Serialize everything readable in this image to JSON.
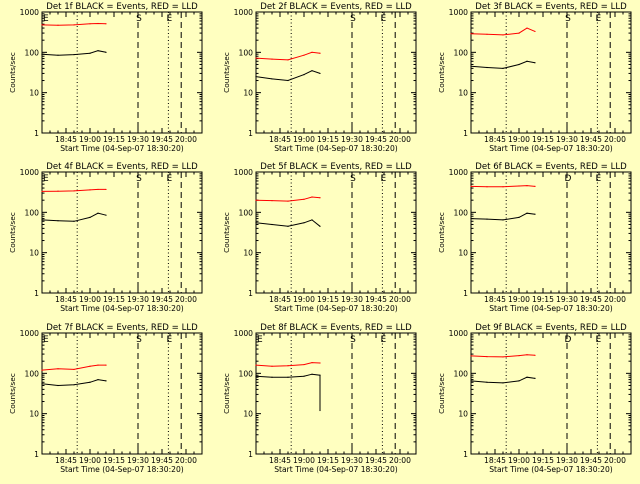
{
  "colors": {
    "background": "#ffffc0",
    "events": "#000000",
    "lld": "#ff0000"
  },
  "chart_data": [
    {
      "type": "line",
      "title": "Det 1f BLACK = Events, RED = LLD",
      "xlabel": "Start Time (04-Sep-07 18:30:20)",
      "ylabel": "Counts/sec",
      "yscale": "log",
      "ylim": [
        1,
        1000
      ],
      "ytick_labels": [
        "1",
        "10",
        "100",
        "1000"
      ],
      "xlim": [
        "18:30",
        "20:10"
      ],
      "xtick_labels": [
        "18:45",
        "19:00",
        "19:15",
        "19:30",
        "19:45",
        "20:00"
      ],
      "marker_lines": [
        {
          "label": "E",
          "time": "18:30",
          "style": "dashed"
        },
        {
          "label": "",
          "time": "18:52",
          "style": "dotted"
        },
        {
          "label": "S",
          "time": "19:30",
          "style": "dashed"
        },
        {
          "label": "E",
          "time": "19:49",
          "style": "dotted"
        },
        {
          "label": "",
          "time": "19:57",
          "style": "dashed"
        }
      ],
      "series": [
        {
          "name": "LLD",
          "color": "#ff0000",
          "x": [
            "18:30",
            "18:40",
            "18:50",
            "19:00",
            "19:05",
            "19:10"
          ],
          "values": [
            480,
            470,
            480,
            510,
            520,
            510
          ]
        },
        {
          "name": "Events",
          "color": "#000000",
          "x": [
            "18:30",
            "18:40",
            "18:50",
            "19:00",
            "19:05",
            "19:10"
          ],
          "values": [
            90,
            85,
            88,
            95,
            110,
            100
          ]
        }
      ]
    },
    {
      "type": "line",
      "title": "Det 2f BLACK = Events, RED = LLD",
      "xlabel": "Start Time (04-Sep-07 18:30:20)",
      "ylabel": "Counts/sec",
      "yscale": "log",
      "ylim": [
        1,
        1000
      ],
      "ytick_labels": [
        "1",
        "10",
        "100",
        "1000"
      ],
      "xlim": [
        "18:30",
        "20:10"
      ],
      "xtick_labels": [
        "18:45",
        "19:00",
        "19:15",
        "19:30",
        "19:45",
        "20:00"
      ],
      "marker_lines": [
        {
          "label": "",
          "time": "18:52",
          "style": "dotted"
        },
        {
          "label": "S",
          "time": "19:30",
          "style": "dashed"
        },
        {
          "label": "E",
          "time": "19:49",
          "style": "dotted"
        },
        {
          "label": "",
          "time": "19:57",
          "style": "dashed"
        }
      ],
      "series": [
        {
          "name": "LLD",
          "color": "#ff0000",
          "x": [
            "18:30",
            "18:40",
            "18:50",
            "19:00",
            "19:05",
            "19:10"
          ],
          "values": [
            72,
            68,
            65,
            85,
            100,
            95
          ]
        },
        {
          "name": "Events",
          "color": "#000000",
          "x": [
            "18:30",
            "18:40",
            "18:50",
            "19:00",
            "19:05",
            "19:10"
          ],
          "values": [
            25,
            22,
            20,
            28,
            35,
            30
          ]
        }
      ]
    },
    {
      "type": "line",
      "title": "Det 3f BLACK = Events, RED = LLD",
      "xlabel": "Start Time (04-Sep-07 18:30:20)",
      "ylabel": "Counts/sec",
      "yscale": "log",
      "ylim": [
        1,
        1000
      ],
      "ytick_labels": [
        "1",
        "10",
        "100",
        "1000"
      ],
      "xlim": [
        "18:30",
        "20:10"
      ],
      "xtick_labels": [
        "18:45",
        "19:00",
        "19:15",
        "19:30",
        "19:45",
        "20:00"
      ],
      "marker_lines": [
        {
          "label": "",
          "time": "18:52",
          "style": "dotted"
        },
        {
          "label": "S",
          "time": "19:30",
          "style": "dashed"
        },
        {
          "label": "E",
          "time": "19:49",
          "style": "dotted"
        },
        {
          "label": "",
          "time": "19:57",
          "style": "dashed"
        }
      ],
      "series": [
        {
          "name": "LLD",
          "color": "#ff0000",
          "x": [
            "18:30",
            "18:40",
            "18:50",
            "19:00",
            "19:05",
            "19:10"
          ],
          "values": [
            290,
            280,
            270,
            300,
            400,
            330
          ]
        },
        {
          "name": "Events",
          "color": "#000000",
          "x": [
            "18:30",
            "18:40",
            "18:50",
            "19:00",
            "19:05",
            "19:10"
          ],
          "values": [
            45,
            42,
            40,
            50,
            60,
            55
          ]
        }
      ]
    },
    {
      "type": "line",
      "title": "Det 4f BLACK = Events, RED = LLD",
      "xlabel": "Start Time (04-Sep-07 18:30:20)",
      "ylabel": "Counts/sec",
      "yscale": "log",
      "ylim": [
        1,
        1000
      ],
      "ytick_labels": [
        "1",
        "10",
        "100",
        "1000"
      ],
      "xlim": [
        "18:30",
        "20:10"
      ],
      "xtick_labels": [
        "18:45",
        "19:00",
        "19:15",
        "19:30",
        "19:45",
        "20:00"
      ],
      "marker_lines": [
        {
          "label": "E",
          "time": "18:30",
          "style": "dashed"
        },
        {
          "label": "",
          "time": "18:52",
          "style": "dotted"
        },
        {
          "label": "S",
          "time": "19:30",
          "style": "dashed"
        },
        {
          "label": "E",
          "time": "19:49",
          "style": "dotted"
        },
        {
          "label": "",
          "time": "19:57",
          "style": "dashed"
        }
      ],
      "series": [
        {
          "name": "LLD",
          "color": "#ff0000",
          "x": [
            "18:30",
            "18:40",
            "18:50",
            "19:00",
            "19:05",
            "19:10"
          ],
          "values": [
            330,
            335,
            340,
            360,
            370,
            370
          ]
        },
        {
          "name": "Events",
          "color": "#000000",
          "x": [
            "18:30",
            "18:40",
            "18:50",
            "19:00",
            "19:05",
            "19:10"
          ],
          "values": [
            65,
            62,
            60,
            75,
            95,
            85
          ]
        }
      ]
    },
    {
      "type": "line",
      "title": "Det 5f BLACK = Events, RED = LLD",
      "xlabel": "Start Time (04-Sep-07 18:30:20)",
      "ylabel": "Counts/sec",
      "yscale": "log",
      "ylim": [
        1,
        1000
      ],
      "ytick_labels": [
        "1",
        "10",
        "100",
        "1000"
      ],
      "xlim": [
        "18:30",
        "20:10"
      ],
      "xtick_labels": [
        "18:45",
        "19:00",
        "19:15",
        "19:30",
        "19:45",
        "20:00"
      ],
      "marker_lines": [
        {
          "label": "",
          "time": "18:52",
          "style": "dotted"
        },
        {
          "label": "S",
          "time": "19:30",
          "style": "dashed"
        },
        {
          "label": "E",
          "time": "19:49",
          "style": "dotted"
        },
        {
          "label": "",
          "time": "19:57",
          "style": "dashed"
        }
      ],
      "series": [
        {
          "name": "LLD",
          "color": "#ff0000",
          "x": [
            "18:30",
            "18:40",
            "18:50",
            "19:00",
            "19:05",
            "19:10"
          ],
          "values": [
            200,
            195,
            190,
            210,
            240,
            230
          ]
        },
        {
          "name": "Events",
          "color": "#000000",
          "x": [
            "18:30",
            "18:40",
            "18:50",
            "19:00",
            "19:05",
            "19:10"
          ],
          "values": [
            55,
            50,
            45,
            55,
            65,
            45
          ]
        }
      ]
    },
    {
      "type": "line",
      "title": "Det 6f BLACK = Events, RED = LLD",
      "xlabel": "Start Time (04-Sep-07 18:30:20)",
      "ylabel": "Counts/sec",
      "yscale": "log",
      "ylim": [
        1,
        1000
      ],
      "ytick_labels": [
        "1",
        "10",
        "100",
        "1000"
      ],
      "xlim": [
        "18:30",
        "20:10"
      ],
      "xtick_labels": [
        "18:45",
        "19:00",
        "19:15",
        "19:30",
        "19:45",
        "20:00"
      ],
      "marker_lines": [
        {
          "label": "",
          "time": "18:52",
          "style": "dotted"
        },
        {
          "label": "D",
          "time": "19:30",
          "style": "dashed"
        },
        {
          "label": "E",
          "time": "19:49",
          "style": "dotted"
        },
        {
          "label": "",
          "time": "19:57",
          "style": "dashed"
        }
      ],
      "series": [
        {
          "name": "LLD",
          "color": "#ff0000",
          "x": [
            "18:30",
            "18:40",
            "18:50",
            "19:00",
            "19:05",
            "19:10"
          ],
          "values": [
            440,
            430,
            430,
            450,
            460,
            440
          ]
        },
        {
          "name": "Events",
          "color": "#000000",
          "x": [
            "18:30",
            "18:40",
            "18:50",
            "19:00",
            "19:05",
            "19:10"
          ],
          "values": [
            70,
            68,
            65,
            75,
            95,
            90
          ]
        }
      ]
    },
    {
      "type": "line",
      "title": "Det 7f BLACK = Events, RED = LLD",
      "xlabel": "Start Time (04-Sep-07 18:30:20)",
      "ylabel": "Counts/sec",
      "yscale": "log",
      "ylim": [
        1,
        1000
      ],
      "ytick_labels": [
        "1",
        "10",
        "100",
        "1000"
      ],
      "xlim": [
        "18:30",
        "20:10"
      ],
      "xtick_labels": [
        "18:45",
        "19:00",
        "19:15",
        "19:30",
        "19:45",
        "20:00"
      ],
      "marker_lines": [
        {
          "label": "E",
          "time": "18:30",
          "style": "dashed"
        },
        {
          "label": "",
          "time": "18:52",
          "style": "dotted"
        },
        {
          "label": "S",
          "time": "19:30",
          "style": "dashed"
        },
        {
          "label": "E",
          "time": "19:49",
          "style": "dotted"
        },
        {
          "label": "",
          "time": "19:57",
          "style": "dashed"
        }
      ],
      "series": [
        {
          "name": "LLD",
          "color": "#ff0000",
          "x": [
            "18:30",
            "18:40",
            "18:50",
            "19:00",
            "19:05",
            "19:10"
          ],
          "values": [
            120,
            130,
            125,
            150,
            160,
            160
          ]
        },
        {
          "name": "Events",
          "color": "#000000",
          "x": [
            "18:30",
            "18:40",
            "18:50",
            "19:00",
            "19:05",
            "19:10"
          ],
          "values": [
            55,
            50,
            52,
            60,
            70,
            65
          ]
        }
      ]
    },
    {
      "type": "line",
      "title": "Det 8f BLACK = Events, RED = LLD",
      "xlabel": "Start Time (04-Sep-07 18:30:20)",
      "ylabel": "Counts/sec",
      "yscale": "log",
      "ylim": [
        1,
        1000
      ],
      "ytick_labels": [
        "1",
        "10",
        "100",
        "1000"
      ],
      "xlim": [
        "18:30",
        "20:10"
      ],
      "xtick_labels": [
        "18:45",
        "19:00",
        "19:15",
        "19:30",
        "19:45",
        "20:00"
      ],
      "marker_lines": [
        {
          "label": "E",
          "time": "18:30",
          "style": "dashed"
        },
        {
          "label": "",
          "time": "18:52",
          "style": "dotted"
        },
        {
          "label": "S",
          "time": "19:30",
          "style": "dashed"
        },
        {
          "label": "E",
          "time": "19:49",
          "style": "dotted"
        },
        {
          "label": "",
          "time": "19:57",
          "style": "dashed"
        }
      ],
      "series": [
        {
          "name": "LLD",
          "color": "#ff0000",
          "x": [
            "18:30",
            "18:40",
            "18:50",
            "19:00",
            "19:05",
            "19:10"
          ],
          "values": [
            160,
            150,
            155,
            165,
            185,
            180
          ]
        },
        {
          "name": "Events",
          "color": "#000000",
          "x": [
            "18:30",
            "18:40",
            "18:50",
            "19:00",
            "19:05",
            "19:10",
            "19:10"
          ],
          "values": [
            85,
            80,
            80,
            85,
            95,
            90,
            12
          ]
        }
      ]
    },
    {
      "type": "line",
      "title": "Det 9f BLACK = Events, RED = LLD",
      "xlabel": "Start Time (04-Sep-07 18:30:20)",
      "ylabel": "Counts/sec",
      "yscale": "log",
      "ylim": [
        1,
        1000
      ],
      "ytick_labels": [
        "1",
        "10",
        "100",
        "1000"
      ],
      "xlim": [
        "18:30",
        "20:10"
      ],
      "xtick_labels": [
        "18:45",
        "19:00",
        "19:15",
        "19:30",
        "19:45",
        "20:00"
      ],
      "marker_lines": [
        {
          "label": "",
          "time": "18:52",
          "style": "dotted"
        },
        {
          "label": "D",
          "time": "19:30",
          "style": "dashed"
        },
        {
          "label": "E",
          "time": "19:49",
          "style": "dotted"
        },
        {
          "label": "",
          "time": "19:57",
          "style": "dashed"
        }
      ],
      "series": [
        {
          "name": "LLD",
          "color": "#ff0000",
          "x": [
            "18:30",
            "18:40",
            "18:50",
            "19:00",
            "19:05",
            "19:10"
          ],
          "values": [
            270,
            260,
            255,
            275,
            290,
            280
          ]
        },
        {
          "name": "Events",
          "color": "#000000",
          "x": [
            "18:30",
            "18:40",
            "18:50",
            "19:00",
            "19:05",
            "19:10"
          ],
          "values": [
            65,
            60,
            58,
            65,
            80,
            75
          ]
        }
      ]
    }
  ]
}
